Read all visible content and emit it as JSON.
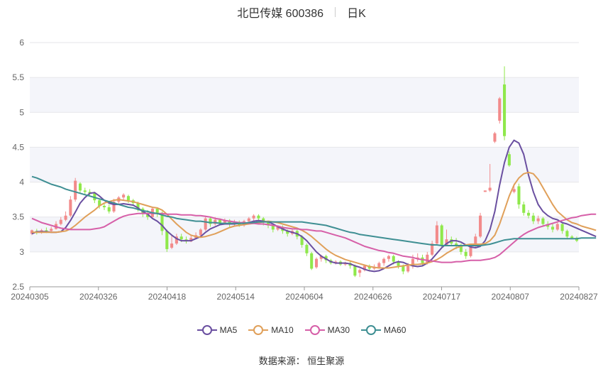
{
  "header": {
    "title": "北巴传媒 600386",
    "period": "日K"
  },
  "footer": {
    "source": "数据来源： 恒生聚源"
  },
  "colors": {
    "up": "#f28b8b",
    "down": "#8fe84b",
    "MA5": "#6a4fa0",
    "MA10": "#e0a05a",
    "MA30": "#d65fa8",
    "MA60": "#3f8f93"
  },
  "chart_data": {
    "type": "candlestick",
    "title": "北巴传媒 600386 日K",
    "ylim": [
      2.5,
      6
    ],
    "yticks": [
      "6",
      "5.5",
      "5",
      "4.5",
      "4",
      "3.5",
      "3",
      "2.5"
    ],
    "xticks": [
      "20240305",
      "20240326",
      "20240418",
      "20240514",
      "20240604",
      "20240626",
      "20240717",
      "20240807",
      "20240827"
    ],
    "legend": [
      "MA5",
      "MA10",
      "MA30",
      "MA60"
    ],
    "legend_position": "bottom",
    "candles": [
      [
        3.26,
        3.31,
        3.24,
        3.32
      ],
      [
        3.3,
        3.28,
        3.25,
        3.33
      ],
      [
        3.28,
        3.31,
        3.26,
        3.33
      ],
      [
        3.31,
        3.3,
        3.27,
        3.35
      ],
      [
        3.3,
        3.33,
        3.28,
        3.36
      ],
      [
        3.33,
        3.4,
        3.32,
        3.44
      ],
      [
        3.4,
        3.46,
        3.38,
        3.5
      ],
      [
        3.46,
        3.52,
        3.44,
        3.58
      ],
      [
        3.52,
        3.75,
        3.5,
        3.8
      ],
      [
        3.75,
        4.02,
        3.72,
        4.06
      ],
      [
        3.98,
        3.88,
        3.85,
        4.0
      ],
      [
        3.88,
        3.86,
        3.82,
        3.92
      ],
      [
        3.86,
        3.84,
        3.8,
        3.9
      ],
      [
        3.84,
        3.74,
        3.7,
        3.86
      ],
      [
        3.74,
        3.66,
        3.62,
        3.76
      ],
      [
        3.66,
        3.64,
        3.6,
        3.7
      ],
      [
        3.64,
        3.58,
        3.55,
        3.68
      ],
      [
        3.58,
        3.72,
        3.56,
        3.76
      ],
      [
        3.72,
        3.78,
        3.68,
        3.8
      ],
      [
        3.78,
        3.82,
        3.74,
        3.84
      ],
      [
        3.8,
        3.74,
        3.7,
        3.82
      ],
      [
        3.74,
        3.7,
        3.66,
        3.76
      ],
      [
        3.7,
        3.62,
        3.58,
        3.72
      ],
      [
        3.62,
        3.55,
        3.5,
        3.64
      ],
      [
        3.55,
        3.5,
        3.46,
        3.6
      ],
      [
        3.5,
        3.62,
        3.48,
        3.64
      ],
      [
        3.62,
        3.56,
        3.5,
        3.64
      ],
      [
        3.56,
        3.3,
        3.24,
        3.58
      ],
      [
        3.3,
        3.04,
        3.0,
        3.32
      ],
      [
        3.06,
        3.12,
        3.04,
        3.24
      ],
      [
        3.12,
        3.22,
        3.1,
        3.26
      ],
      [
        3.22,
        3.18,
        3.14,
        3.26
      ],
      [
        3.18,
        3.15,
        3.12,
        3.22
      ],
      [
        3.15,
        3.2,
        3.14,
        3.24
      ],
      [
        3.2,
        3.24,
        3.18,
        3.28
      ],
      [
        3.24,
        3.32,
        3.22,
        3.34
      ],
      [
        3.32,
        3.48,
        3.3,
        3.52
      ],
      [
        3.48,
        3.4,
        3.36,
        3.5
      ],
      [
        3.4,
        3.46,
        3.38,
        3.5
      ],
      [
        3.46,
        3.42,
        3.38,
        3.48
      ],
      [
        3.42,
        3.45,
        3.4,
        3.48
      ],
      [
        3.45,
        3.4,
        3.36,
        3.47
      ],
      [
        3.4,
        3.42,
        3.38,
        3.46
      ],
      [
        3.42,
        3.38,
        3.36,
        3.45
      ],
      [
        3.38,
        3.44,
        3.36,
        3.46
      ],
      [
        3.44,
        3.48,
        3.42,
        3.5
      ],
      [
        3.48,
        3.52,
        3.44,
        3.54
      ],
      [
        3.52,
        3.48,
        3.44,
        3.54
      ],
      [
        3.48,
        3.42,
        3.38,
        3.5
      ],
      [
        3.42,
        3.38,
        3.34,
        3.44
      ],
      [
        3.38,
        3.32,
        3.28,
        3.4
      ],
      [
        3.32,
        3.36,
        3.3,
        3.38
      ],
      [
        3.36,
        3.3,
        3.26,
        3.38
      ],
      [
        3.3,
        3.26,
        3.22,
        3.32
      ],
      [
        3.26,
        3.3,
        3.24,
        3.32
      ],
      [
        3.3,
        3.22,
        3.18,
        3.32
      ],
      [
        3.22,
        3.1,
        3.06,
        3.24
      ],
      [
        3.1,
        2.98,
        2.94,
        3.12
      ],
      [
        2.98,
        2.76,
        2.74,
        3.0
      ],
      [
        2.78,
        2.9,
        2.76,
        2.92
      ],
      [
        2.9,
        2.94,
        2.86,
        2.96
      ],
      [
        2.94,
        2.88,
        2.84,
        2.96
      ],
      [
        2.88,
        2.84,
        2.82,
        2.9
      ],
      [
        2.84,
        2.86,
        2.82,
        2.88
      ],
      [
        2.86,
        2.82,
        2.8,
        2.88
      ],
      [
        2.82,
        2.84,
        2.8,
        2.86
      ],
      [
        2.84,
        2.8,
        2.76,
        2.86
      ],
      [
        2.8,
        2.66,
        2.64,
        2.82
      ],
      [
        2.7,
        2.74,
        2.64,
        2.76
      ],
      [
        2.74,
        2.8,
        2.72,
        2.82
      ],
      [
        2.8,
        2.76,
        2.72,
        2.82
      ],
      [
        2.76,
        2.78,
        2.74,
        2.82
      ],
      [
        2.78,
        2.84,
        2.76,
        2.86
      ],
      [
        2.84,
        2.9,
        2.8,
        2.92
      ],
      [
        2.9,
        2.94,
        2.86,
        2.96
      ],
      [
        2.94,
        2.86,
        2.82,
        2.96
      ],
      [
        2.86,
        2.8,
        2.76,
        2.88
      ],
      [
        2.8,
        2.72,
        2.68,
        2.82
      ],
      [
        2.72,
        2.8,
        2.7,
        2.84
      ],
      [
        2.8,
        2.9,
        2.76,
        2.96
      ],
      [
        2.9,
        2.92,
        2.86,
        2.98
      ],
      [
        2.92,
        2.84,
        2.8,
        2.96
      ],
      [
        2.84,
        2.96,
        2.82,
        3.0
      ],
      [
        2.96,
        3.12,
        2.94,
        3.16
      ],
      [
        3.12,
        3.38,
        3.1,
        3.44
      ],
      [
        3.38,
        3.1,
        3.06,
        3.4
      ],
      [
        3.1,
        3.18,
        3.08,
        3.32
      ],
      [
        3.18,
        3.12,
        3.1,
        3.22
      ],
      [
        3.12,
        3.08,
        3.04,
        3.2
      ],
      [
        3.08,
        3.0,
        2.96,
        3.12
      ],
      [
        3.0,
        2.94,
        2.9,
        3.04
      ],
      [
        2.94,
        3.08,
        2.92,
        3.12
      ],
      [
        3.08,
        3.22,
        3.06,
        3.26
      ],
      [
        3.22,
        3.52,
        3.2,
        3.56
      ],
      [
        3.86,
        3.88,
        3.86,
        3.88
      ],
      [
        3.88,
        3.92,
        3.86,
        4.26
      ],
      [
        4.58,
        4.7,
        4.56,
        4.72
      ],
      [
        4.88,
        5.2,
        4.84,
        5.22
      ],
      [
        5.4,
        4.66,
        4.6,
        5.66
      ],
      [
        4.4,
        4.24,
        4.22,
        4.44
      ],
      [
        3.86,
        3.9,
        3.84,
        3.98
      ],
      [
        3.94,
        3.68,
        3.62,
        3.98
      ],
      [
        3.68,
        3.56,
        3.52,
        3.72
      ],
      [
        3.56,
        3.52,
        3.48,
        3.6
      ],
      [
        3.52,
        3.44,
        3.4,
        3.56
      ],
      [
        3.44,
        3.48,
        3.4,
        3.52
      ],
      [
        3.48,
        3.4,
        3.36,
        3.5
      ],
      [
        3.4,
        3.36,
        3.32,
        3.44
      ],
      [
        3.36,
        3.32,
        3.28,
        3.4
      ],
      [
        3.32,
        3.4,
        3.3,
        3.42
      ],
      [
        3.4,
        3.3,
        3.26,
        3.42
      ],
      [
        3.3,
        3.22,
        3.18,
        3.32
      ],
      [
        3.22,
        3.2,
        3.18,
        3.24
      ],
      [
        3.2,
        3.16,
        3.14,
        3.22
      ]
    ],
    "series": [
      {
        "name": "MA5",
        "values": [
          3.26,
          3.29,
          3.29,
          3.29,
          3.28,
          3.28,
          3.29,
          3.35,
          3.45,
          3.57,
          3.7,
          3.78,
          3.84,
          3.85,
          3.8,
          3.74,
          3.7,
          3.68,
          3.68,
          3.69,
          3.68,
          3.67,
          3.63,
          3.58,
          3.54,
          3.48,
          3.44,
          3.38,
          3.3,
          3.24,
          3.19,
          3.16,
          3.16,
          3.16,
          3.19,
          3.22,
          3.28,
          3.33,
          3.36,
          3.39,
          3.4,
          3.4,
          3.4,
          3.41,
          3.41,
          3.42,
          3.44,
          3.45,
          3.44,
          3.43,
          3.4,
          3.36,
          3.33,
          3.3,
          3.28,
          3.26,
          3.22,
          3.16,
          3.08,
          3.0,
          2.94,
          2.9,
          2.86,
          2.84,
          2.84,
          2.84,
          2.83,
          2.8,
          2.78,
          2.75,
          2.73,
          2.72,
          2.73,
          2.76,
          2.8,
          2.84,
          2.86,
          2.85,
          2.82,
          2.8,
          2.79,
          2.8,
          2.84,
          2.9,
          2.98,
          3.06,
          3.12,
          3.16,
          3.16,
          3.14,
          3.1,
          3.07,
          3.06,
          3.08,
          3.16,
          3.32,
          3.58,
          3.96,
          4.28,
          4.5,
          4.6,
          4.56,
          4.4,
          4.1,
          3.86,
          3.68,
          3.58,
          3.52,
          3.48,
          3.46,
          3.42,
          3.4,
          3.37,
          3.34,
          3.31,
          3.28,
          3.25,
          3.22
        ]
      },
      {
        "name": "MA10",
        "values": [
          3.28,
          3.28,
          3.28,
          3.28,
          3.28,
          3.28,
          3.29,
          3.3,
          3.33,
          3.38,
          3.44,
          3.5,
          3.55,
          3.6,
          3.66,
          3.7,
          3.72,
          3.74,
          3.75,
          3.74,
          3.73,
          3.72,
          3.7,
          3.68,
          3.66,
          3.64,
          3.63,
          3.6,
          3.54,
          3.47,
          3.4,
          3.34,
          3.28,
          3.24,
          3.22,
          3.21,
          3.22,
          3.24,
          3.26,
          3.29,
          3.32,
          3.35,
          3.37,
          3.38,
          3.39,
          3.4,
          3.41,
          3.42,
          3.43,
          3.44,
          3.43,
          3.42,
          3.4,
          3.38,
          3.36,
          3.34,
          3.31,
          3.27,
          3.22,
          3.16,
          3.1,
          3.04,
          2.99,
          2.95,
          2.92,
          2.89,
          2.87,
          2.85,
          2.83,
          2.81,
          2.79,
          2.78,
          2.77,
          2.77,
          2.77,
          2.78,
          2.79,
          2.8,
          2.81,
          2.82,
          2.82,
          2.83,
          2.84,
          2.86,
          2.89,
          2.93,
          2.98,
          3.02,
          3.06,
          3.08,
          3.1,
          3.11,
          3.11,
          3.11,
          3.12,
          3.16,
          3.24,
          3.4,
          3.6,
          3.8,
          3.96,
          4.06,
          4.12,
          4.14,
          4.12,
          4.04,
          3.92,
          3.8,
          3.68,
          3.58,
          3.52,
          3.46,
          3.42,
          3.4,
          3.37,
          3.35,
          3.33,
          3.31
        ]
      },
      {
        "name": "MA30",
        "values": [
          3.48,
          3.45,
          3.42,
          3.4,
          3.38,
          3.36,
          3.34,
          3.33,
          3.32,
          3.32,
          3.32,
          3.32,
          3.32,
          3.33,
          3.34,
          3.36,
          3.4,
          3.44,
          3.48,
          3.51,
          3.53,
          3.54,
          3.55,
          3.55,
          3.55,
          3.55,
          3.55,
          3.55,
          3.54,
          3.54,
          3.54,
          3.53,
          3.53,
          3.53,
          3.52,
          3.52,
          3.51,
          3.5,
          3.48,
          3.47,
          3.45,
          3.44,
          3.43,
          3.42,
          3.42,
          3.41,
          3.41,
          3.4,
          3.4,
          3.39,
          3.38,
          3.37,
          3.35,
          3.34,
          3.33,
          3.33,
          3.32,
          3.32,
          3.31,
          3.3,
          3.3,
          3.28,
          3.26,
          3.24,
          3.22,
          3.2,
          3.17,
          3.14,
          3.11,
          3.08,
          3.06,
          3.04,
          3.02,
          3.01,
          2.99,
          2.98,
          2.96,
          2.94,
          2.93,
          2.92,
          2.9,
          2.89,
          2.88,
          2.87,
          2.86,
          2.85,
          2.85,
          2.85,
          2.86,
          2.86,
          2.87,
          2.88,
          2.88,
          2.88,
          2.89,
          2.9,
          2.92,
          2.96,
          3.02,
          3.08,
          3.14,
          3.2,
          3.25,
          3.29,
          3.32,
          3.35,
          3.37,
          3.39,
          3.41,
          3.43,
          3.45,
          3.47,
          3.49,
          3.5,
          3.52,
          3.53,
          3.54,
          3.54
        ]
      },
      {
        "name": "MA60",
        "values": [
          4.08,
          4.06,
          4.03,
          4.0,
          3.97,
          3.95,
          3.93,
          3.9,
          3.88,
          3.86,
          3.84,
          3.82,
          3.8,
          3.78,
          3.76,
          3.74,
          3.72,
          3.7,
          3.68,
          3.66,
          3.64,
          3.63,
          3.61,
          3.59,
          3.58,
          3.56,
          3.55,
          3.53,
          3.51,
          3.5,
          3.48,
          3.47,
          3.46,
          3.45,
          3.44,
          3.44,
          3.43,
          3.42,
          3.42,
          3.41,
          3.41,
          3.41,
          3.41,
          3.41,
          3.41,
          3.42,
          3.42,
          3.43,
          3.43,
          3.43,
          3.43,
          3.43,
          3.43,
          3.43,
          3.43,
          3.43,
          3.43,
          3.42,
          3.41,
          3.4,
          3.39,
          3.38,
          3.36,
          3.34,
          3.32,
          3.3,
          3.28,
          3.27,
          3.25,
          3.24,
          3.23,
          3.22,
          3.21,
          3.2,
          3.19,
          3.18,
          3.17,
          3.16,
          3.15,
          3.14,
          3.13,
          3.12,
          3.11,
          3.1,
          3.1,
          3.09,
          3.09,
          3.09,
          3.09,
          3.09,
          3.09,
          3.09,
          3.09,
          3.09,
          3.1,
          3.11,
          3.13,
          3.15,
          3.17,
          3.18,
          3.19,
          3.19,
          3.19,
          3.19,
          3.19,
          3.19,
          3.19,
          3.19,
          3.19,
          3.19,
          3.19,
          3.19,
          3.19,
          3.19,
          3.2,
          3.2,
          3.2,
          3.2
        ]
      }
    ]
  }
}
